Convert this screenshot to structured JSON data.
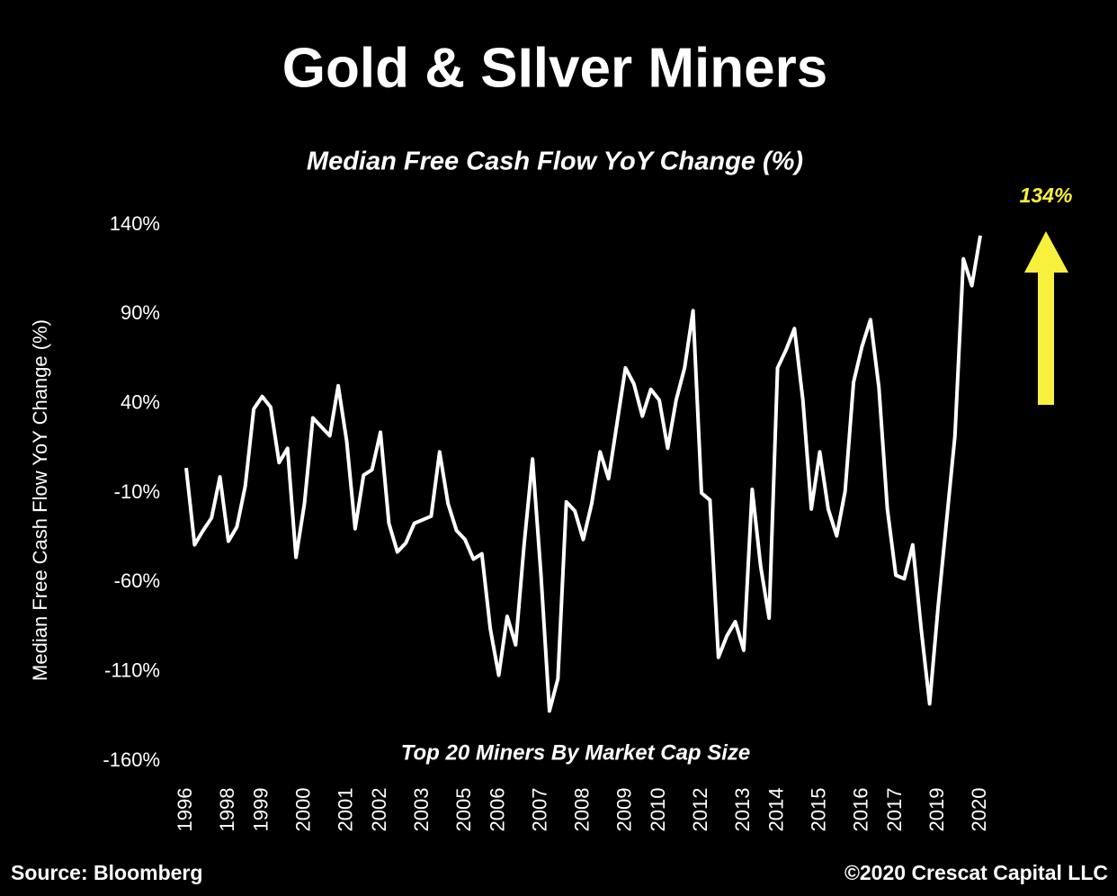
{
  "chart_data": {
    "type": "line",
    "title": "Gold & SIlver Miners",
    "subtitle": "Median Free Cash Flow YoY Change (%)",
    "y_label": "Median Free Cash Flow YoY Change (%)",
    "note": "Top 20 Miners By Market Cap Size",
    "source": "Source: Bloomberg",
    "copyright": "©2020 Crescat Capital LLC",
    "annotation": "134%",
    "annotation_color": "#f7f03c",
    "categories": [
      "1996",
      null,
      null,
      null,
      null,
      "1998",
      null,
      null,
      null,
      "1999",
      null,
      null,
      null,
      null,
      "2000",
      null,
      null,
      null,
      null,
      "2001",
      null,
      null,
      null,
      "2002",
      null,
      null,
      null,
      null,
      "2003",
      null,
      null,
      null,
      null,
      "2005",
      null,
      null,
      null,
      "2006",
      null,
      null,
      null,
      null,
      "2007",
      null,
      null,
      null,
      null,
      "2008",
      null,
      null,
      null,
      null,
      "2009",
      null,
      null,
      null,
      "2010",
      null,
      null,
      null,
      null,
      "2012",
      null,
      null,
      null,
      null,
      "2013",
      null,
      null,
      null,
      "2014",
      null,
      null,
      null,
      null,
      "2015",
      null,
      null,
      null,
      null,
      "2016",
      null,
      null,
      null,
      "2017",
      null,
      null,
      null,
      null,
      "2019",
      null,
      null,
      null,
      null,
      "2020"
    ],
    "series": [
      {
        "name": "Median Free Cash Flow YoY Change",
        "color": "#ffffff",
        "values": [
          4,
          -39,
          -31,
          -24,
          -1,
          -37,
          -29,
          -6,
          37,
          44,
          38,
          7,
          15,
          -46,
          -16,
          32,
          27,
          22,
          50,
          19,
          -30,
          0,
          3,
          24,
          -27,
          -43,
          -38,
          -27,
          -25,
          -23,
          13,
          -16,
          -31,
          -36,
          -47,
          -44,
          -86,
          -112,
          -79,
          -95,
          -39,
          9,
          -56,
          -132,
          -114,
          -15,
          -20,
          -36,
          -16,
          13,
          -2,
          29,
          60,
          51,
          33,
          48,
          42,
          15,
          42,
          60,
          92,
          -10,
          -14,
          -102,
          -90,
          -82,
          -98,
          -8,
          -51,
          -80,
          60,
          70,
          82,
          42,
          -19,
          13,
          -19,
          -34,
          -9,
          52,
          72,
          87,
          49,
          -19,
          -56,
          -58,
          -39,
          -86,
          -128,
          -74,
          -26,
          22,
          121,
          106,
          134
        ]
      }
    ],
    "ylim": [
      -160,
      140
    ],
    "yticks": [
      {
        "value": -160,
        "label": "-160%"
      },
      {
        "value": -110,
        "label": "-110%"
      },
      {
        "value": -60,
        "label": "-60%"
      },
      {
        "value": -10,
        "label": "-10%"
      },
      {
        "value": 40,
        "label": "40%"
      },
      {
        "value": 90,
        "label": "90%"
      },
      {
        "value": 140,
        "label": "140%"
      }
    ],
    "grid": false
  }
}
